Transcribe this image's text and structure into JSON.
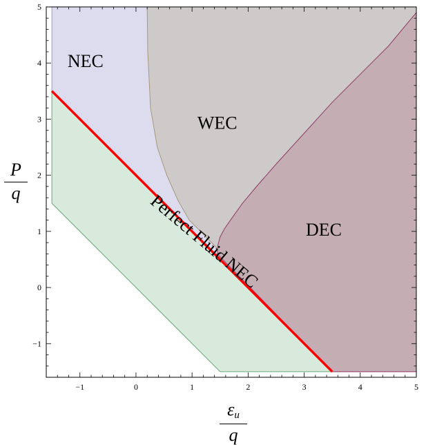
{
  "chart_data": {
    "type": "area",
    "title": "",
    "xlabel": {
      "numerator": "ε",
      "subscript": "u",
      "denominator": "q"
    },
    "ylabel": {
      "numerator": "P",
      "denominator": "q"
    },
    "xlim": [
      -1.6,
      5.0
    ],
    "ylim": [
      -1.6,
      5.0
    ],
    "x_ticks": [
      -1,
      0,
      1,
      2,
      3,
      4,
      5
    ],
    "y_ticks": [
      -1,
      0,
      1,
      2,
      3,
      4,
      5
    ],
    "x_tick_labels": [
      "−1",
      "0",
      "1",
      "2",
      "3",
      "4",
      "5"
    ],
    "y_tick_labels": [
      "−1",
      "0",
      "1",
      "2",
      "3",
      "4",
      "5"
    ],
    "grid": false,
    "regions": [
      {
        "label": "NEC",
        "fill": "#dcdcee",
        "stroke": "#9a9acb",
        "label_at": [
          -0.9,
          4.0
        ],
        "boundary": [
          [
            -1.5,
            5.0
          ],
          [
            5.0,
            5.0
          ],
          [
            5.0,
            -1.5
          ],
          [
            3.5,
            -1.5
          ],
          [
            -1.5,
            3.5
          ]
        ]
      },
      {
        "label": "Perfect Fluid NEC",
        "fill": "#d7eadb",
        "stroke": "#6aa676",
        "label_at": [
          1.2,
          0.8
        ],
        "label_rotation_deg": 40,
        "boundary": [
          [
            -1.5,
            3.5
          ],
          [
            -1.5,
            1.5
          ],
          [
            1.5,
            -1.5
          ],
          [
            3.5,
            -1.5
          ]
        ]
      },
      {
        "label": "WEC",
        "fill": "#cfcaca",
        "stroke": "#a6987a",
        "label_at": [
          1.45,
          2.9
        ],
        "boundary": [
          [
            0.2,
            5.0
          ],
          [
            0.21,
            4.2
          ],
          [
            0.26,
            3.2
          ],
          [
            0.38,
            2.5
          ],
          [
            0.55,
            2.0
          ],
          [
            0.75,
            1.55
          ],
          [
            0.95,
            1.2
          ],
          [
            1.45,
            0.7
          ],
          [
            3.5,
            -1.5
          ],
          [
            5.0,
            -1.5
          ],
          [
            5.0,
            5.0
          ]
        ]
      },
      {
        "label": "DEC",
        "fill": "#c4aeb3",
        "stroke": "#8e3c66",
        "label_at": [
          3.35,
          1.0
        ],
        "boundary": [
          [
            1.45,
            0.6
          ],
          [
            1.46,
            0.75
          ],
          [
            1.5,
            0.9
          ],
          [
            1.58,
            1.05
          ],
          [
            1.72,
            1.25
          ],
          [
            1.9,
            1.5
          ],
          [
            2.15,
            1.8
          ],
          [
            2.5,
            2.2
          ],
          [
            3.0,
            2.75
          ],
          [
            3.5,
            3.3
          ],
          [
            4.0,
            3.8
          ],
          [
            4.5,
            4.3
          ],
          [
            5.0,
            4.9
          ],
          [
            5.0,
            -1.5
          ],
          [
            3.5,
            -1.5
          ]
        ]
      }
    ],
    "lines": [
      {
        "color": "#ff0000",
        "points": [
          [
            -1.5,
            3.5
          ],
          [
            3.5,
            -1.5
          ]
        ]
      }
    ]
  }
}
